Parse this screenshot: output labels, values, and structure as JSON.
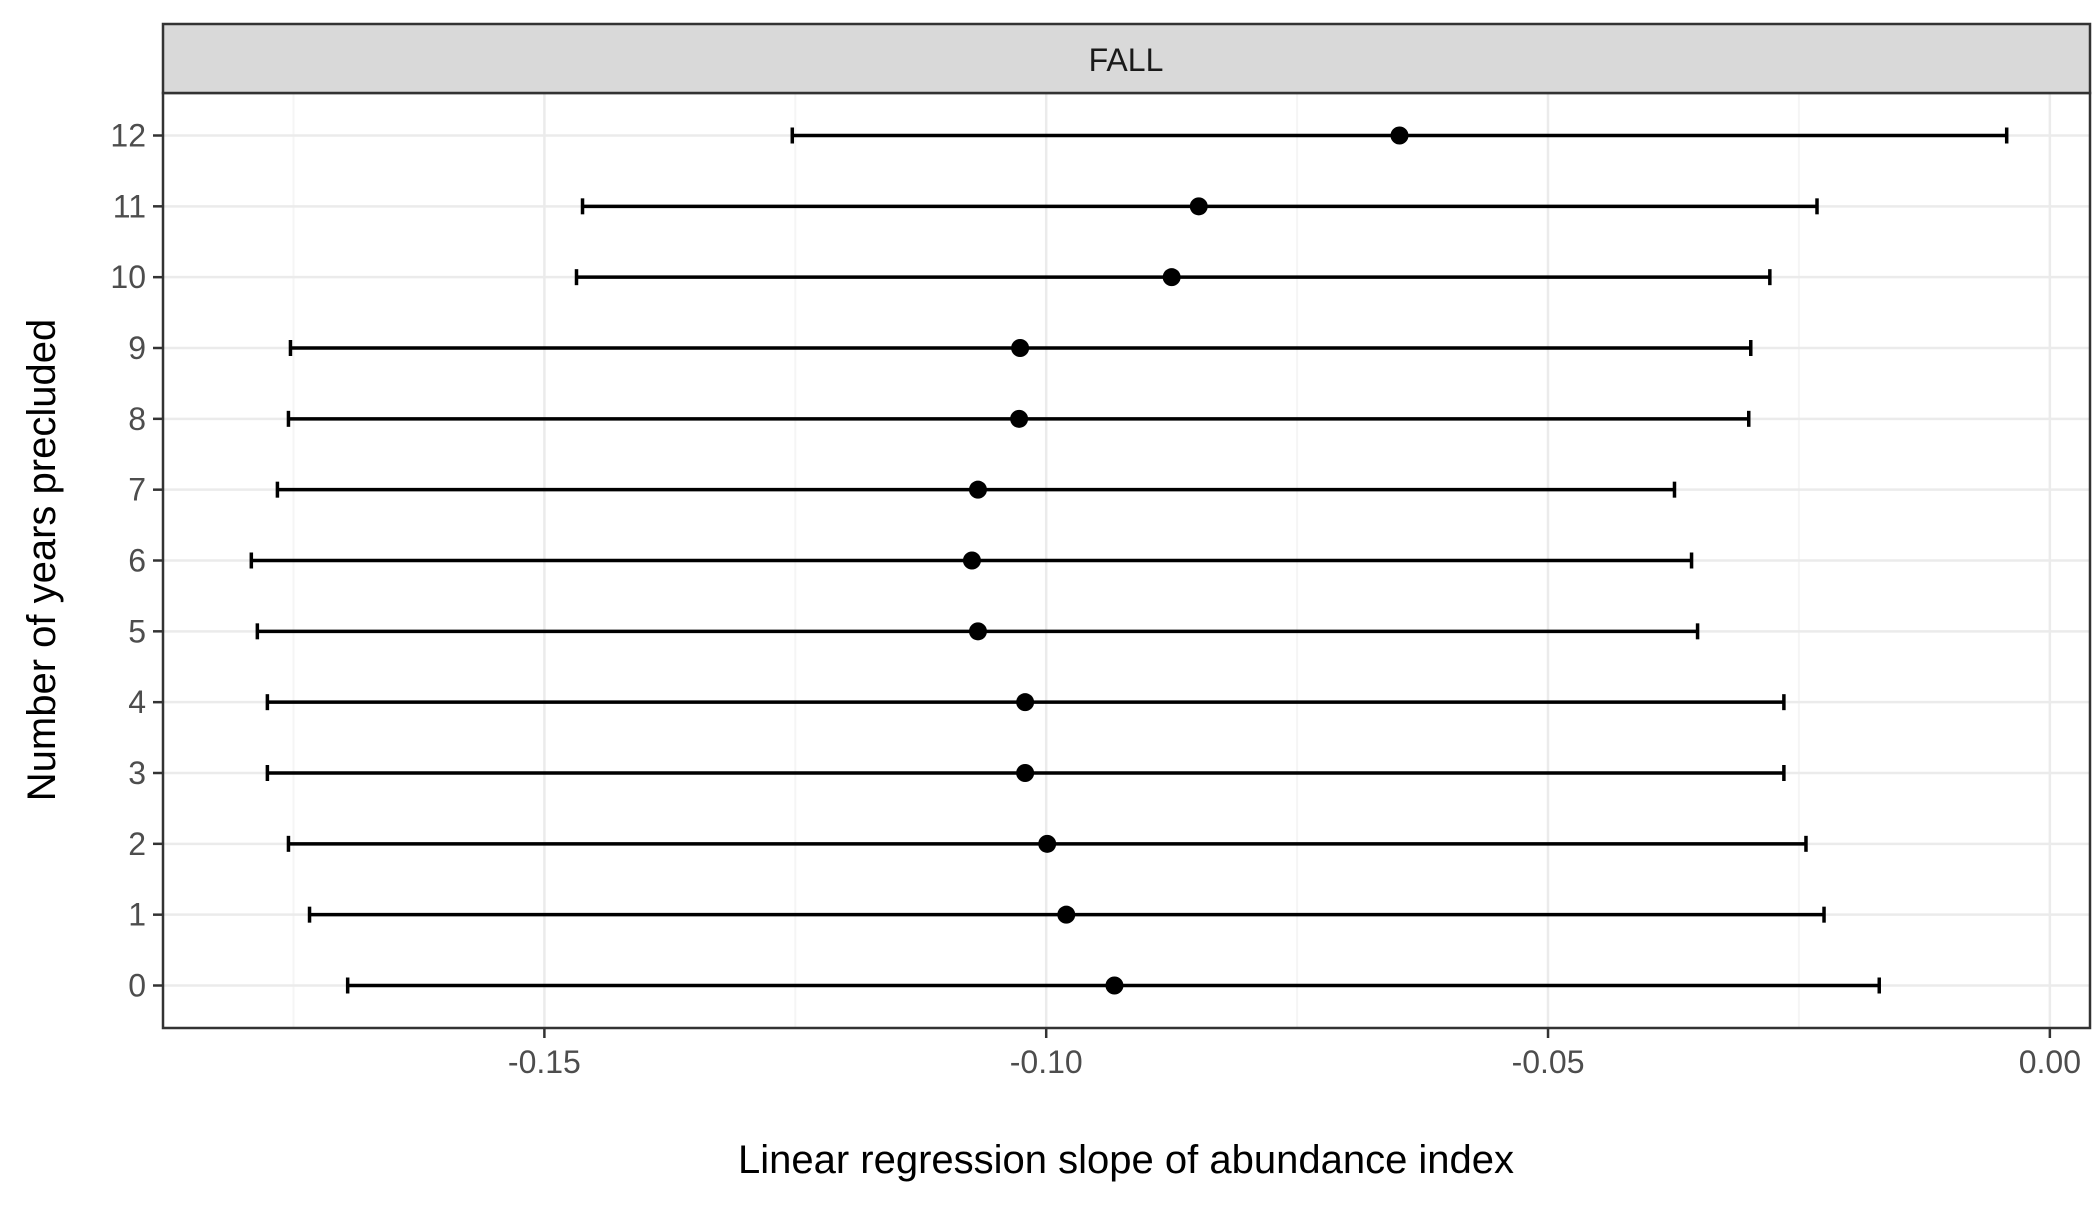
{
  "chart_data": {
    "type": "errorbar",
    "facet": "FALL",
    "xlabel": "Linear regression slope of abundance index",
    "ylabel": "Number of years precluded",
    "xlim": [
      -0.188,
      0.004
    ],
    "ylim": [
      -0.6,
      12.6
    ],
    "xticks": [
      -0.15,
      -0.1,
      -0.05,
      0.0
    ],
    "xtick_labels": [
      "-0.15",
      "-0.10",
      "-0.05",
      "0.00"
    ],
    "yticks": [
      0,
      1,
      2,
      3,
      4,
      5,
      6,
      7,
      8,
      9,
      10,
      11,
      12
    ],
    "ytick_labels": [
      "0",
      "1",
      "2",
      "3",
      "4",
      "5",
      "6",
      "7",
      "8",
      "9",
      "10",
      "11",
      "12"
    ],
    "grid": true,
    "legend": "none",
    "points": [
      {
        "y": 0,
        "estimate": -0.0932,
        "lower": -0.1696,
        "upper": -0.017
      },
      {
        "y": 1,
        "estimate": -0.098,
        "lower": -0.1734,
        "upper": -0.0225
      },
      {
        "y": 2,
        "estimate": -0.0999,
        "lower": -0.1755,
        "upper": -0.0243
      },
      {
        "y": 3,
        "estimate": -0.1021,
        "lower": -0.1776,
        "upper": -0.0265
      },
      {
        "y": 4,
        "estimate": -0.1021,
        "lower": -0.1776,
        "upper": -0.0265
      },
      {
        "y": 5,
        "estimate": -0.1068,
        "lower": -0.1786,
        "upper": -0.0351
      },
      {
        "y": 6,
        "estimate": -0.1074,
        "lower": -0.1792,
        "upper": -0.0357
      },
      {
        "y": 7,
        "estimate": -0.1068,
        "lower": -0.1766,
        "upper": -0.0374
      },
      {
        "y": 8,
        "estimate": -0.1027,
        "lower": -0.1755,
        "upper": -0.03
      },
      {
        "y": 9,
        "estimate": -0.1026,
        "lower": -0.1753,
        "upper": -0.0298
      },
      {
        "y": 10,
        "estimate": -0.0875,
        "lower": -0.1468,
        "upper": -0.0279
      },
      {
        "y": 11,
        "estimate": -0.0848,
        "lower": -0.1462,
        "upper": -0.0232
      },
      {
        "y": 12,
        "estimate": -0.0648,
        "lower": -0.1253,
        "upper": -0.0043
      }
    ]
  },
  "colors": {
    "ink": "#000000",
    "strip_fill": "#d9d9d9",
    "strip_border": "#333333",
    "panel_border": "#333333",
    "grid_major": "#ebebeb",
    "grid_minor": "#f5f5f5",
    "tick_label": "#4d4d4d"
  }
}
